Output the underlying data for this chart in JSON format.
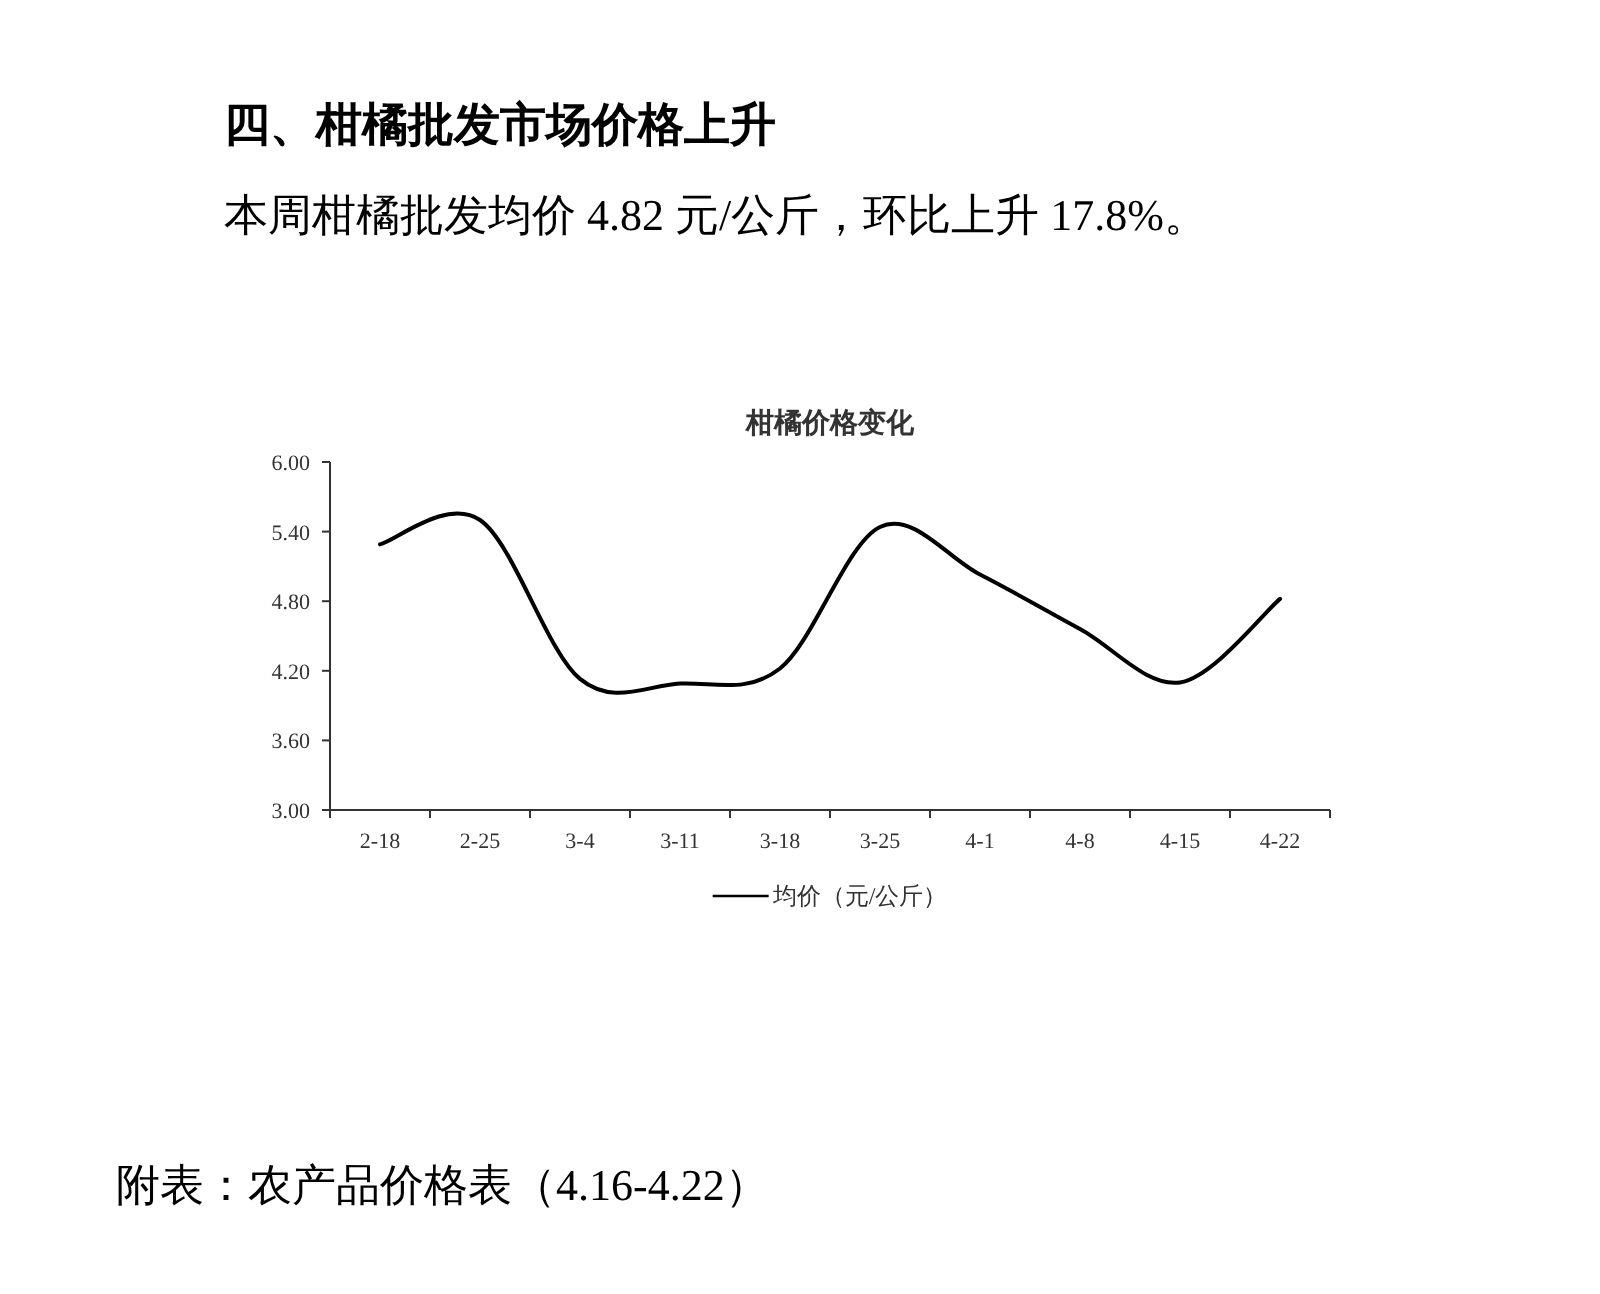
{
  "chart_data": {
    "type": "line",
    "title": "柑橘价格变化",
    "annotations": [
      "四、柑橘批发市场价格上升",
      "本周柑橘批发均价 4.82 元/公斤，环比上升 17.8%。",
      "附表：农产品价格表（4.16-4.22）"
    ],
    "categories": [
      "2-18",
      "2-25",
      "3-4",
      "3-11",
      "3-18",
      "3-25",
      "4-1",
      "4-8",
      "4-15",
      "4-22"
    ],
    "series": [
      {
        "name": "均价（元/公斤）",
        "color": "#000000",
        "values": [
          5.29,
          5.5,
          4.13,
          4.09,
          4.22,
          5.44,
          5.03,
          4.56,
          4.1,
          4.82
        ]
      }
    ],
    "ylim": [
      3,
      6
    ],
    "yticks": [
      {
        "value": 3,
        "label": "3.00"
      },
      {
        "value": 3.6,
        "label": "3.60"
      },
      {
        "value": 4.2,
        "label": "4.20"
      },
      {
        "value": 4.8,
        "label": "4.80"
      },
      {
        "value": 5.4,
        "label": "5.40"
      },
      {
        "value": 6,
        "label": "6.00"
      }
    ],
    "legend": "bottom"
  }
}
